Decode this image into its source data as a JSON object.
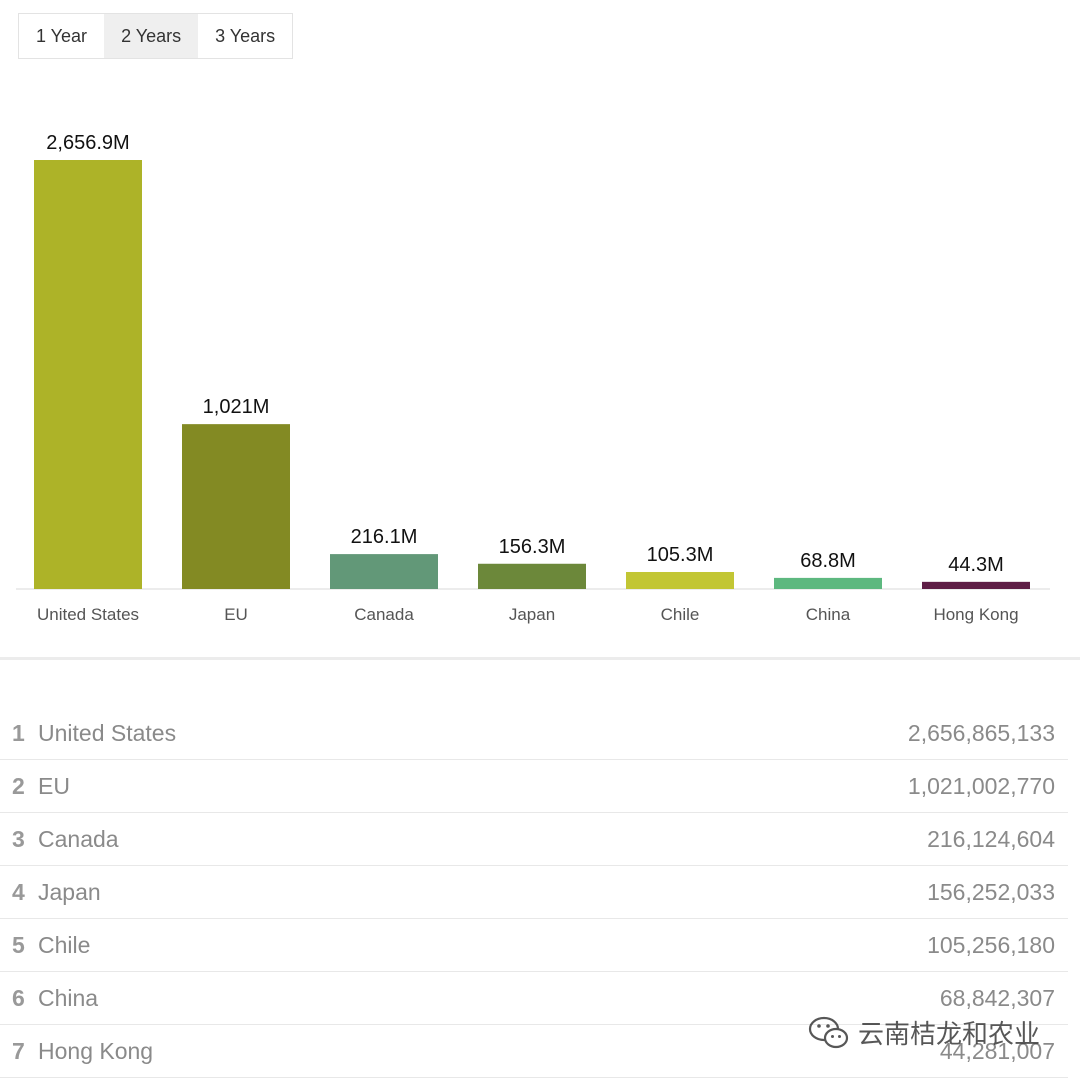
{
  "tabs": [
    {
      "label": "1 Year",
      "active": false
    },
    {
      "label": "2 Years",
      "active": true
    },
    {
      "label": "3 Years",
      "active": false
    }
  ],
  "chart_data": {
    "type": "bar",
    "title": "",
    "xlabel": "",
    "ylabel": "",
    "categories": [
      "United States",
      "EU",
      "Canada",
      "Japan",
      "Chile",
      "China",
      "Hong Kong"
    ],
    "values": [
      2656.9,
      1021,
      216.1,
      156.3,
      105.3,
      68.8,
      44.3
    ],
    "value_labels": [
      "2,656.9M",
      "1,021M",
      "216.1M",
      "156.3M",
      "105.3M",
      "68.8M",
      "44.3M"
    ],
    "colors": [
      "#adb328",
      "#838a23",
      "#629878",
      "#6c883a",
      "#c2c634",
      "#5db87f",
      "#5e1d45"
    ],
    "ylim": [
      0,
      2656.9
    ],
    "grid": false,
    "legend": "none"
  },
  "ranking": [
    {
      "rank": "1",
      "name": "United States",
      "value": "2,656,865,133"
    },
    {
      "rank": "2",
      "name": "EU",
      "value": "1,021,002,770"
    },
    {
      "rank": "3",
      "name": "Canada",
      "value": "216,124,604"
    },
    {
      "rank": "4",
      "name": "Japan",
      "value": "156,252,033"
    },
    {
      "rank": "5",
      "name": "Chile",
      "value": "105,256,180"
    },
    {
      "rank": "6",
      "name": "China",
      "value": "68,842,307"
    },
    {
      "rank": "7",
      "name": "Hong Kong",
      "value": "44,281,007"
    }
  ],
  "watermark": {
    "text": "云南桔龙和农业",
    "icon": "wechat-icon"
  }
}
